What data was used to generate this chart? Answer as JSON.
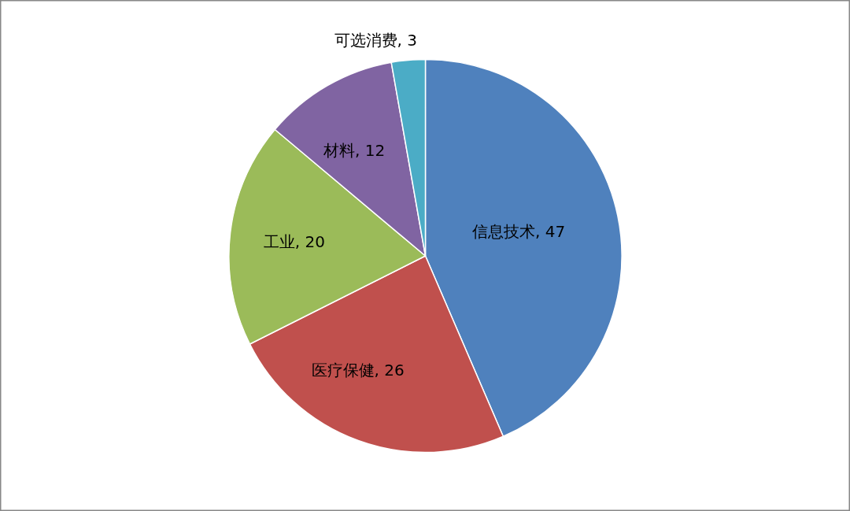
{
  "chart_data": {
    "type": "pie",
    "categories": [
      "信息技术",
      "医疗保健",
      "工业",
      "材料",
      "可选消费"
    ],
    "values": [
      47,
      26,
      20,
      12,
      3
    ],
    "value_labels": [
      ", 47",
      ", 26",
      ", 20",
      ", 12",
      ", 3"
    ],
    "colors": [
      "#4f81bd",
      "#c0504d",
      "#9bbb59",
      "#8064a2",
      "#4bacc6"
    ],
    "legend": false
  }
}
